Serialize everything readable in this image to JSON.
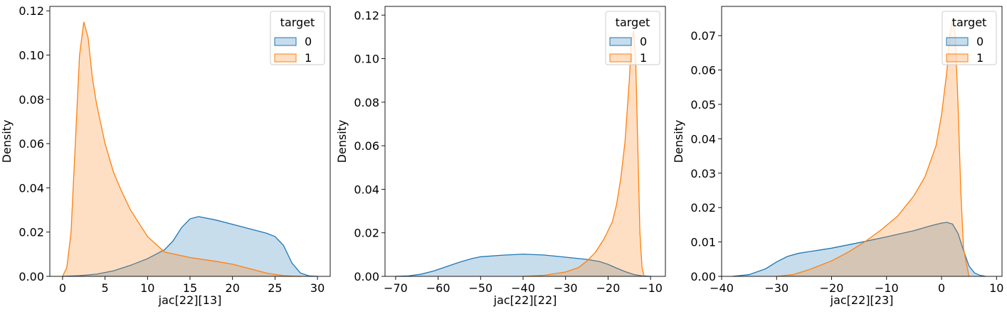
{
  "chart_data": [
    {
      "type": "area",
      "xlabel": "jac[22][13]",
      "ylabel": "Density",
      "xlim": [
        -1.5,
        31.5
      ],
      "ylim": [
        0,
        0.122
      ],
      "xticks": [
        0,
        5,
        10,
        15,
        20,
        25,
        30
      ],
      "xtick_labels": [
        "0",
        "5",
        "10",
        "15",
        "20",
        "25",
        "30"
      ],
      "yticks": [
        0.0,
        0.02,
        0.04,
        0.06,
        0.08,
        0.1,
        0.12
      ],
      "ytick_labels": [
        "0.00",
        "0.02",
        "0.04",
        "0.06",
        "0.08",
        "0.10",
        "0.12"
      ],
      "grid": false,
      "legend": {
        "title": "target",
        "placement": "top-right",
        "entries": [
          "0",
          "1"
        ]
      },
      "series": [
        {
          "name": "0",
          "color": "#1f77b4",
          "x": [
            0,
            2,
            4,
            6,
            8,
            10,
            12,
            13,
            14,
            15,
            16,
            18,
            20,
            22,
            24,
            25,
            26,
            27,
            28,
            29,
            30
          ],
          "y": [
            0,
            0.0003,
            0.001,
            0.0025,
            0.005,
            0.008,
            0.012,
            0.016,
            0.022,
            0.026,
            0.027,
            0.0255,
            0.0235,
            0.0215,
            0.0195,
            0.018,
            0.014,
            0.006,
            0.0015,
            0.0002,
            0
          ]
        },
        {
          "name": "1",
          "color": "#ff7f0e",
          "x": [
            0,
            0.5,
            1,
            1.5,
            2,
            2.5,
            3,
            3.5,
            4,
            5,
            6,
            7,
            8,
            10,
            12,
            15,
            18,
            20,
            22,
            24,
            26,
            27,
            28
          ],
          "y": [
            0,
            0.004,
            0.02,
            0.06,
            0.1,
            0.115,
            0.108,
            0.09,
            0.078,
            0.06,
            0.047,
            0.038,
            0.03,
            0.018,
            0.011,
            0.0085,
            0.0068,
            0.0055,
            0.0035,
            0.0015,
            0.0003,
            0.0001,
            0
          ]
        }
      ]
    },
    {
      "type": "area",
      "xlabel": "jac[22][22]",
      "ylabel": "Density",
      "xlim": [
        -72.5,
        -6.5
      ],
      "ylim": [
        0,
        0.124
      ],
      "xticks": [
        -70,
        -60,
        -50,
        -40,
        -30,
        -20,
        -10
      ],
      "xtick_labels": [
        "−70",
        "−60",
        "−50",
        "−40",
        "−30",
        "−20",
        "−10"
      ],
      "yticks": [
        0.0,
        0.02,
        0.04,
        0.06,
        0.08,
        0.1,
        0.12
      ],
      "ytick_labels": [
        "0.00",
        "0.02",
        "0.04",
        "0.06",
        "0.08",
        "0.10",
        "0.12"
      ],
      "grid": false,
      "legend": {
        "title": "target",
        "placement": "top-right",
        "entries": [
          "0",
          "1"
        ]
      },
      "series": [
        {
          "name": "0",
          "color": "#1f77b4",
          "x": [
            -70,
            -67,
            -64,
            -61,
            -58,
            -55,
            -52,
            -50,
            -45,
            -40,
            -35,
            -30,
            -25,
            -22,
            -20,
            -18,
            -16,
            -14,
            -12,
            -11,
            -10
          ],
          "y": [
            0,
            0.0002,
            0.001,
            0.0025,
            0.0045,
            0.0065,
            0.0082,
            0.009,
            0.0097,
            0.0102,
            0.0098,
            0.0088,
            0.0078,
            0.0068,
            0.0055,
            0.0038,
            0.0022,
            0.0009,
            0.0002,
            0.0001,
            0
          ]
        },
        {
          "name": "1",
          "color": "#ff7f0e",
          "x": [
            -40,
            -35,
            -30,
            -27,
            -25,
            -23,
            -21,
            -19,
            -18,
            -17,
            -16,
            -15,
            -14.5,
            -14,
            -13.5,
            -13,
            -12.5,
            -12,
            -11.5
          ],
          "y": [
            0,
            0.0005,
            0.002,
            0.004,
            0.007,
            0.011,
            0.017,
            0.025,
            0.033,
            0.045,
            0.062,
            0.09,
            0.108,
            0.113,
            0.1,
            0.06,
            0.02,
            0.004,
            0
          ]
        }
      ]
    },
    {
      "type": "area",
      "xlabel": "jac[22][23]",
      "ylabel": "Density",
      "xlim": [
        -40,
        11
      ],
      "ylim": [
        0,
        0.0785
      ],
      "xticks": [
        -40,
        -30,
        -20,
        -10,
        0,
        10
      ],
      "xtick_labels": [
        "−40",
        "−30",
        "−20",
        "−10",
        "0",
        "10"
      ],
      "yticks": [
        0.0,
        0.01,
        0.02,
        0.03,
        0.04,
        0.05,
        0.06,
        0.07
      ],
      "ytick_labels": [
        "0.00",
        "0.01",
        "0.02",
        "0.03",
        "0.04",
        "0.05",
        "0.06",
        "0.07"
      ],
      "grid": false,
      "legend": {
        "title": "target",
        "placement": "top-right",
        "entries": [
          "0",
          "1"
        ]
      },
      "series": [
        {
          "name": "0",
          "color": "#1f77b4",
          "x": [
            -38,
            -35,
            -32,
            -30,
            -28,
            -26,
            -24,
            -20,
            -15,
            -10,
            -5,
            -2,
            0,
            1,
            2,
            3,
            4,
            5,
            6,
            7,
            8
          ],
          "y": [
            0,
            0.0005,
            0.0022,
            0.0042,
            0.0058,
            0.0067,
            0.0072,
            0.0082,
            0.0098,
            0.0115,
            0.0133,
            0.0147,
            0.0155,
            0.0157,
            0.0152,
            0.0125,
            0.0075,
            0.003,
            0.001,
            0.0003,
            0
          ]
        },
        {
          "name": "1",
          "color": "#ff7f0e",
          "x": [
            -30,
            -27,
            -24,
            -20,
            -17,
            -14,
            -11,
            -8,
            -5,
            -3,
            -1,
            0,
            1,
            1.5,
            2,
            2.5,
            3,
            3.5,
            4,
            5
          ],
          "y": [
            0,
            0.0005,
            0.002,
            0.0045,
            0.007,
            0.01,
            0.0135,
            0.0175,
            0.0235,
            0.029,
            0.038,
            0.047,
            0.06,
            0.07,
            0.075,
            0.07,
            0.05,
            0.025,
            0.008,
            0
          ]
        }
      ]
    }
  ]
}
